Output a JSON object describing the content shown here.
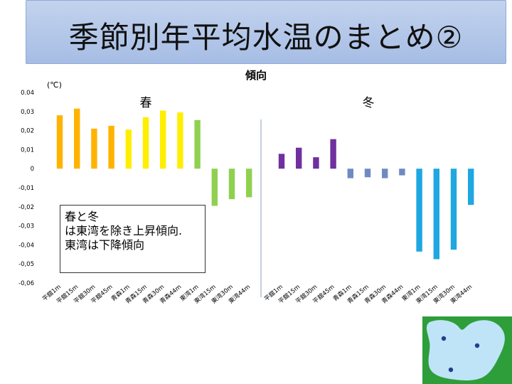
{
  "slide": {
    "title": "季節別年平均水温のまとめ②"
  },
  "chart_data": {
    "type": "bar",
    "title": "傾向",
    "unit_label": "(℃)",
    "ylim": [
      -0.06,
      0.04
    ],
    "yticks": [
      "0.04",
      "0,03",
      "0,02",
      "0,01",
      "0",
      "-0,01",
      "-0,02",
      "-0,03",
      "-0,04",
      "-0,05",
      "-0,06"
    ],
    "groups": [
      {
        "name": "春",
        "categories": [
          "平舘1m",
          "平舘15m",
          "平舘30m",
          "平舘45m",
          "青森1m",
          "青森15m",
          "青森30m",
          "青森44m",
          "東湾1m",
          "東湾15m",
          "東湾30m",
          "東湾44m"
        ],
        "values": [
          0.028,
          0.0315,
          0.021,
          0.0225,
          0.0205,
          0.027,
          0.0305,
          0.0295,
          0.0255,
          -0.0195,
          -0.016,
          -0.015
        ],
        "colors": [
          "#FFB300",
          "#FFB300",
          "#FFB300",
          "#FFB300",
          "#FFEE00",
          "#FFEE00",
          "#FFEE00",
          "#FFEE00",
          "#8FD14F",
          "#8FD14F",
          "#8FD14F",
          "#8FD14F"
        ]
      },
      {
        "name": "冬",
        "categories": [
          "平舘1m",
          "平舘15m",
          "平舘30m",
          "平舘45m",
          "青森1m",
          "青森15m",
          "青森30m",
          "青森44m",
          "東湾1m",
          "東湾15m",
          "東湾30m",
          "東湾44m"
        ],
        "values": [
          0.0078,
          0.011,
          0.006,
          0.0155,
          -0.005,
          -0.0045,
          -0.005,
          -0.0035,
          -0.0435,
          -0.0475,
          -0.0425,
          -0.019
        ],
        "colors": [
          "#7030A0",
          "#7030A0",
          "#7030A0",
          "#7030A0",
          "#6E8BC0",
          "#6E8BC0",
          "#6E8BC0",
          "#6E8BC0",
          "#1EA7E1",
          "#1EA7E1",
          "#1EA7E1",
          "#1EA7E1"
        ]
      }
    ]
  },
  "annotation": {
    "lines": [
      "春と冬",
      "は東湾を除き上昇傾向.",
      "東湾は下降傾向"
    ]
  },
  "map": {
    "water_color": "#bfe4f7",
    "land_color": "#2e9e3a",
    "dot_color": "#1f3f8f"
  }
}
